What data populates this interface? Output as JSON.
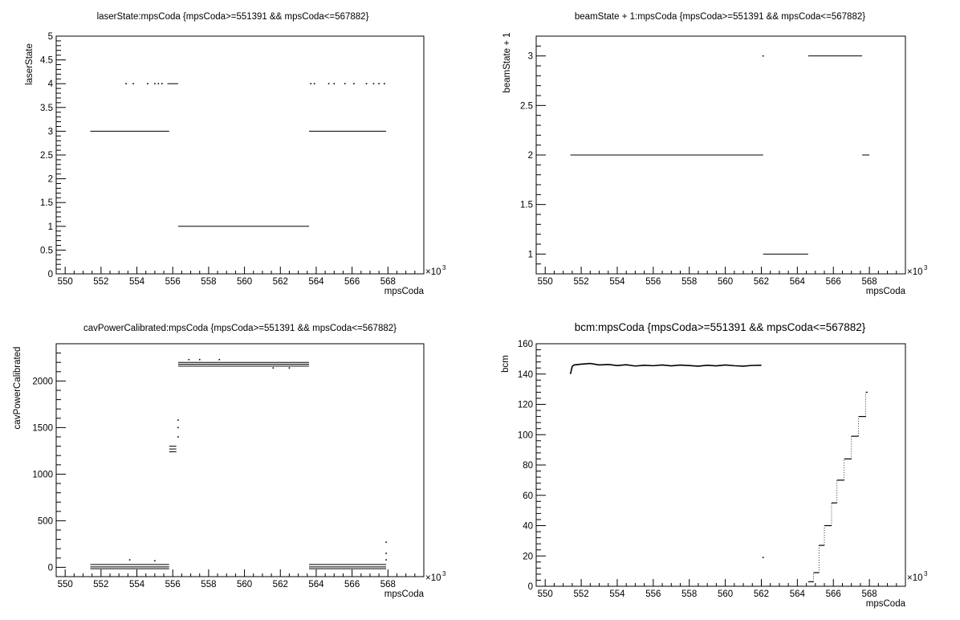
{
  "chart_data": [
    {
      "type": "scatter",
      "title": "laserState:mpsCoda {mpsCoda>=551391 && mpsCoda<=567882}",
      "xlabel": "mpsCoda",
      "ylabel": "laserState",
      "x_multiplier": "×10",
      "x_multiplier_exp": "3",
      "xlim": [
        549.5,
        570
      ],
      "ylim": [
        0,
        5
      ],
      "x_ticks": [
        "550",
        "552",
        "554",
        "556",
        "558",
        "560",
        "562",
        "564",
        "566",
        "568"
      ],
      "y_ticks": [
        "0",
        "0.5",
        "1",
        "1.5",
        "2",
        "2.5",
        "3",
        "3.5",
        "4",
        "4.5",
        "5"
      ],
      "segments": [
        {
          "x": [
            551.4,
            555.8
          ],
          "y": 3
        },
        {
          "x": [
            563.6,
            567.9
          ],
          "y": 3
        },
        {
          "x": [
            556.3,
            563.6
          ],
          "y": 1
        },
        {
          "x": [
            555.7,
            556.3
          ],
          "y": 4
        }
      ],
      "points": [
        {
          "x": 553.4,
          "y": 4
        },
        {
          "x": 553.8,
          "y": 4
        },
        {
          "x": 554.6,
          "y": 4
        },
        {
          "x": 555.0,
          "y": 4
        },
        {
          "x": 555.2,
          "y": 4
        },
        {
          "x": 555.4,
          "y": 4
        },
        {
          "x": 563.7,
          "y": 4
        },
        {
          "x": 563.9,
          "y": 4
        },
        {
          "x": 564.7,
          "y": 4
        },
        {
          "x": 565.0,
          "y": 4
        },
        {
          "x": 565.6,
          "y": 4
        },
        {
          "x": 566.1,
          "y": 4
        },
        {
          "x": 566.8,
          "y": 4
        },
        {
          "x": 567.2,
          "y": 4
        },
        {
          "x": 567.5,
          "y": 4
        },
        {
          "x": 567.8,
          "y": 4
        }
      ],
      "grid": false
    },
    {
      "type": "scatter",
      "title": "beamState + 1:mpsCoda {mpsCoda>=551391 && mpsCoda<=567882}",
      "xlabel": "mpsCoda",
      "ylabel": "beamState + 1",
      "x_multiplier": "×10",
      "x_multiplier_exp": "3",
      "xlim": [
        549.5,
        570
      ],
      "ylim": [
        0.8,
        3.2
      ],
      "x_ticks": [
        "550",
        "552",
        "554",
        "556",
        "558",
        "560",
        "562",
        "564",
        "566",
        "568"
      ],
      "y_ticks": [
        "1",
        "1.5",
        "2",
        "2.5",
        "3"
      ],
      "segments": [
        {
          "x": [
            551.4,
            562.1
          ],
          "y": 2
        },
        {
          "x": [
            562.1,
            564.6
          ],
          "y": 1
        },
        {
          "x": [
            564.6,
            567.6
          ],
          "y": 3
        },
        {
          "x": [
            567.6,
            568.0
          ],
          "y": 2
        }
      ],
      "points": [
        {
          "x": 562.1,
          "y": 3
        }
      ],
      "grid": false
    },
    {
      "type": "scatter",
      "title": "cavPowerCalibrated:mpsCoda {mpsCoda>=551391 && mpsCoda<=567882}",
      "xlabel": "mpsCoda",
      "ylabel": "cavPowerCalibrated",
      "x_multiplier": "×10",
      "x_multiplier_exp": "3",
      "xlim": [
        549.5,
        570
      ],
      "ylim": [
        -100,
        2400
      ],
      "x_ticks": [
        "550",
        "552",
        "554",
        "556",
        "558",
        "560",
        "562",
        "564",
        "566",
        "568"
      ],
      "y_ticks": [
        "0",
        "500",
        "1000",
        "1500",
        "2000"
      ],
      "segments": [
        {
          "x": [
            551.4,
            555.8
          ],
          "y": 30
        },
        {
          "x": [
            551.4,
            555.8
          ],
          "y": 5
        },
        {
          "x": [
            551.4,
            555.8
          ],
          "y": -15
        },
        {
          "x": [
            563.6,
            567.9
          ],
          "y": 30
        },
        {
          "x": [
            563.6,
            567.9
          ],
          "y": 5
        },
        {
          "x": [
            563.6,
            567.9
          ],
          "y": -15
        },
        {
          "x": [
            556.3,
            563.6
          ],
          "y": 2200
        },
        {
          "x": [
            556.3,
            563.6
          ],
          "y": 2180
        },
        {
          "x": [
            556.3,
            563.6
          ],
          "y": 2160
        },
        {
          "x": [
            555.8,
            556.2
          ],
          "y": 1300
        },
        {
          "x": [
            555.8,
            556.2
          ],
          "y": 1270
        },
        {
          "x": [
            555.8,
            556.2
          ],
          "y": 1240
        }
      ],
      "points": [
        {
          "x": 553.6,
          "y": 80
        },
        {
          "x": 555.0,
          "y": 70
        },
        {
          "x": 556.3,
          "y": 1400
        },
        {
          "x": 556.3,
          "y": 1500
        },
        {
          "x": 556.3,
          "y": 1580
        },
        {
          "x": 567.9,
          "y": 150
        },
        {
          "x": 567.9,
          "y": 270
        },
        {
          "x": 556.9,
          "y": 2230
        },
        {
          "x": 557.5,
          "y": 2230
        },
        {
          "x": 558.6,
          "y": 2230
        },
        {
          "x": 561.6,
          "y": 2140
        },
        {
          "x": 562.5,
          "y": 2140
        },
        {
          "x": 567.9,
          "y": 80
        }
      ],
      "grid": false
    },
    {
      "type": "scatter",
      "title": "bcm:mpsCoda {mpsCoda>=551391 && mpsCoda<=567882}",
      "xlabel": "mpsCoda",
      "ylabel": "bcm",
      "x_multiplier": "×10",
      "x_multiplier_exp": "3",
      "xlim": [
        549.5,
        570
      ],
      "ylim": [
        0,
        160
      ],
      "x_ticks": [
        "550",
        "552",
        "554",
        "556",
        "558",
        "560",
        "562",
        "564",
        "566",
        "568"
      ],
      "y_ticks": [
        "0",
        "20",
        "40",
        "60",
        "80",
        "100",
        "120",
        "140",
        "160"
      ],
      "line": {
        "x": [
          551.4,
          551.5,
          551.6,
          552.0,
          552.5,
          553.0,
          553.5,
          554.0,
          554.5,
          555.0,
          555.5,
          556.0,
          556.5,
          557.0,
          557.5,
          558.0,
          558.5,
          559.0,
          559.5,
          560.0,
          560.5,
          561.0,
          561.5,
          562.0
        ],
        "y": [
          140,
          145,
          146,
          146.5,
          147,
          146,
          146.3,
          145.6,
          146.1,
          145.3,
          145.8,
          145.5,
          146,
          145.4,
          145.9,
          145.6,
          145.2,
          145.8,
          145.4,
          146,
          145.5,
          145.2,
          145.7,
          145.8
        ]
      },
      "steps": [
        {
          "x": [
            564.6,
            564.9
          ],
          "y": 3
        },
        {
          "x": [
            564.9,
            565.2
          ],
          "y": 9
        },
        {
          "x": [
            565.2,
            565.5
          ],
          "y": 27
        },
        {
          "x": [
            565.5,
            565.9
          ],
          "y": 40
        },
        {
          "x": [
            565.9,
            566.2
          ],
          "y": 55
        },
        {
          "x": [
            566.2,
            566.6
          ],
          "y": 70
        },
        {
          "x": [
            566.6,
            567.0
          ],
          "y": 84
        },
        {
          "x": [
            567.0,
            567.4
          ],
          "y": 99
        },
        {
          "x": [
            567.4,
            567.8
          ],
          "y": 112
        },
        {
          "x": [
            567.8,
            567.9
          ],
          "y": 128
        }
      ],
      "points": [
        {
          "x": 562.1,
          "y": 19
        }
      ],
      "grid": false
    }
  ]
}
